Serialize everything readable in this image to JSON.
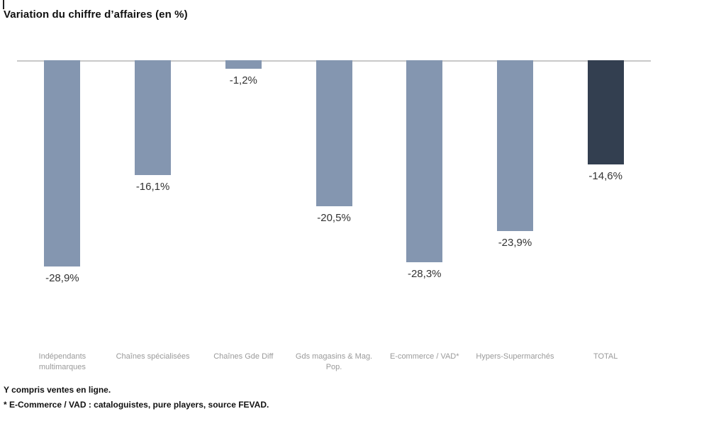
{
  "page": {
    "title": "Variation du chiffre d’affaires (en %)",
    "footnotes": [
      "Y compris ventes en ligne.",
      "* E-Commerce / VAD : cataloguistes, pure players, source FEVAD."
    ]
  },
  "chart_data": {
    "type": "bar",
    "title": "Variation du chiffre d’affaires (en %)",
    "categories": [
      "Indépendants multimarques",
      "Chaînes spécialisées",
      "Chaînes Gde Diff",
      "Gds magasins & Mag. Pop.",
      "E-commerce / VAD*",
      "Hypers-Supermarchés",
      "TOTAL"
    ],
    "values": [
      -28.9,
      -16.1,
      -1.2,
      -20.5,
      -28.3,
      -23.9,
      -14.6
    ],
    "value_labels": [
      "-28,9%",
      "-16,1%",
      "-1,2%",
      "-20,5%",
      "-28,3%",
      "-23,9%",
      "-14,6%"
    ],
    "bar_colors": [
      "#8496B0",
      "#8496B0",
      "#8496B0",
      "#8496B0",
      "#8496B0",
      "#8496B0",
      "#333F50"
    ],
    "axis_color": "#c8c8c8",
    "value_label_color": "#333333",
    "category_label_color": "#9a9a9a",
    "xlabel": "",
    "ylabel": "",
    "ylim": [
      -30,
      0
    ],
    "grid": false,
    "legend": null,
    "orientation": "vertical",
    "baseline": "top"
  }
}
